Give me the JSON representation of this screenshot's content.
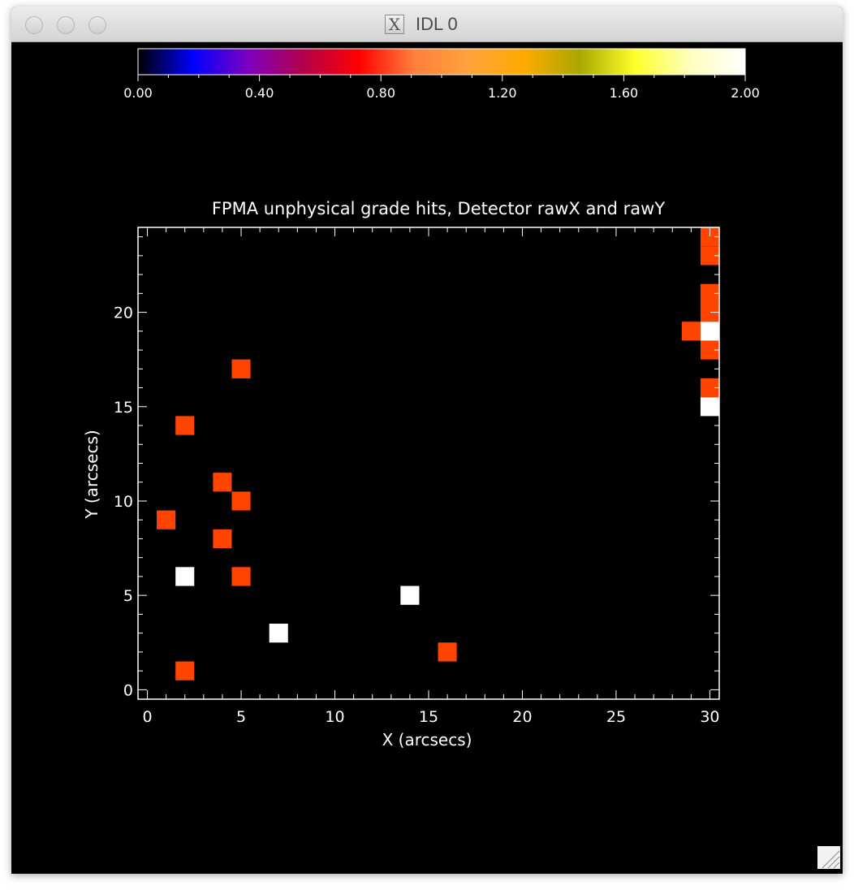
{
  "window": {
    "title": "IDL 0",
    "icon": "x11-icon",
    "icon_glyph": "X"
  },
  "colorbar": {
    "min": 0,
    "max": 2,
    "tick_labels": [
      "0.00",
      "0.40",
      "0.80",
      "1.20",
      "1.60",
      "2.00"
    ],
    "colors": [
      "#000000",
      "#0000ff",
      "#7f00bf",
      "#b4004a",
      "#ff0000",
      "#ff7f3a",
      "#ffa33c",
      "#ffaa00",
      "#a8a800",
      "#ffff2a",
      "#ffffbe",
      "#ffffff"
    ]
  },
  "chart_data": {
    "type": "heatmap",
    "title": "FPMA unphysical grade hits, Detector rawX and rawY",
    "xlabel": "X (arcsecs)",
    "ylabel": "Y (arcsecs)",
    "xlim": [
      -0.5,
      30.5
    ],
    "ylim": [
      -0.5,
      24.5
    ],
    "x_ticks": [
      0,
      5,
      10,
      15,
      20,
      25,
      30
    ],
    "y_ticks": [
      0,
      5,
      10,
      15,
      20
    ],
    "x_tick_labels": [
      "0",
      "5",
      "10",
      "15",
      "20",
      "25",
      "30"
    ],
    "y_tick_labels": [
      "0",
      "5",
      "10",
      "15",
      "20"
    ],
    "value_range": [
      0,
      2
    ],
    "cells": [
      {
        "x": 2,
        "y": 1,
        "value": 1
      },
      {
        "x": 16,
        "y": 2,
        "value": 1
      },
      {
        "x": 7,
        "y": 3,
        "value": 2
      },
      {
        "x": 14,
        "y": 5,
        "value": 2
      },
      {
        "x": 2,
        "y": 6,
        "value": 2
      },
      {
        "x": 5,
        "y": 6,
        "value": 1
      },
      {
        "x": 4,
        "y": 8,
        "value": 1
      },
      {
        "x": 1,
        "y": 9,
        "value": 1
      },
      {
        "x": 5,
        "y": 10,
        "value": 1
      },
      {
        "x": 4,
        "y": 11,
        "value": 1
      },
      {
        "x": 2,
        "y": 14,
        "value": 1
      },
      {
        "x": 5,
        "y": 17,
        "value": 1
      },
      {
        "x": 30,
        "y": 15,
        "value": 2
      },
      {
        "x": 30,
        "y": 16,
        "value": 1
      },
      {
        "x": 30,
        "y": 18,
        "value": 1
      },
      {
        "x": 29,
        "y": 19,
        "value": 1
      },
      {
        "x": 30,
        "y": 19,
        "value": 2
      },
      {
        "x": 30,
        "y": 20,
        "value": 1
      },
      {
        "x": 30,
        "y": 21,
        "value": 1
      },
      {
        "x": 30,
        "y": 23,
        "value": 1
      },
      {
        "x": 30,
        "y": 24,
        "value": 1
      }
    ],
    "colors": {
      "1": "#ff4400",
      "2": "#ffffff"
    }
  }
}
